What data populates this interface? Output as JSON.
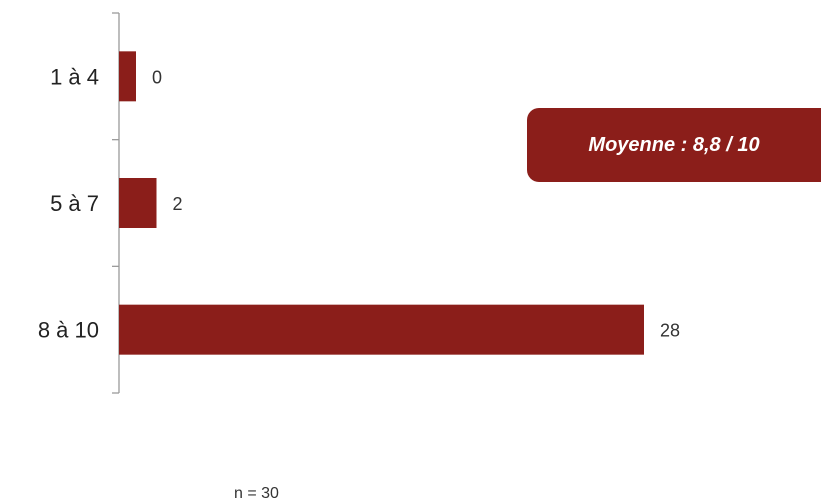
{
  "chart_data": {
    "type": "bar",
    "orientation": "horizontal",
    "categories": [
      "1 à 4",
      "5 à 7",
      "8 à 10"
    ],
    "values": [
      0,
      2,
      28
    ],
    "bar_color": "#8b1e1a",
    "grid": false,
    "xlim": [
      0,
      28
    ]
  },
  "annotation": {
    "mean_text": "Moyenne : 8,8 / 10"
  },
  "footer": {
    "n_text": "n = 30"
  }
}
